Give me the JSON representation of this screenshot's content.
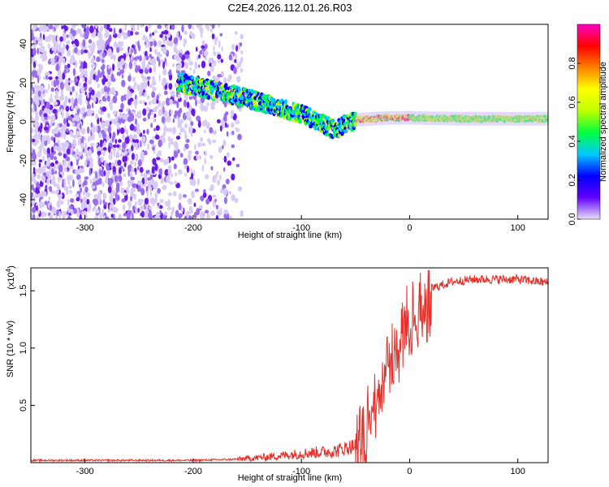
{
  "title": "C2E4.2026.112.01.26.R03",
  "chart_data": [
    {
      "type": "heatmap",
      "name": "spectrogram",
      "xlabel": "Height of straight line (km)",
      "ylabel": "Frequency (Hz)",
      "xlim": [
        -350,
        128
      ],
      "ylim": [
        -50,
        50
      ],
      "xticks": [
        -300,
        -200,
        -100,
        0,
        100
      ],
      "yticks": [
        -40,
        -20,
        0,
        20,
        40
      ],
      "xtick_labels": [
        "-300",
        "-200",
        "-100",
        "0",
        "100"
      ],
      "ytick_labels": [
        "-40",
        "-20",
        "0",
        "20",
        "40"
      ],
      "signal_track": {
        "x": [
          -212,
          -150,
          -100,
          -70,
          -50,
          -20,
          0,
          50,
          128
        ],
        "freq": [
          20,
          12,
          4,
          -4,
          1,
          2,
          2,
          1.5,
          1.5
        ]
      },
      "colorbar": {
        "label": "Normalized spectral amplitude",
        "range": [
          0,
          1
        ],
        "ticks": [
          0.0,
          0.2,
          0.4,
          0.6,
          0.8
        ],
        "tick_labels": [
          "0.0",
          "0.2",
          "0.4",
          "0.6",
          "0.8"
        ],
        "colors": [
          "#e8e0f8",
          "#6000ff",
          "#0000ff",
          "#00c8ff",
          "#00ff40",
          "#c0ff00",
          "#ffff00",
          "#ff8000",
          "#ff0000",
          "#ff00c0"
        ]
      }
    },
    {
      "type": "line",
      "name": "snr",
      "xlabel": "Height of straight line (km)",
      "ylabel": "SNR (10 * v/v)",
      "yscale_label": "(x10",
      "yscale_exp": "4",
      "xlim": [
        -350,
        128
      ],
      "ylim": [
        0,
        1.7
      ],
      "xticks": [
        -300,
        -200,
        -100,
        0,
        100
      ],
      "yticks": [
        0.5,
        1.0,
        1.5
      ],
      "xtick_labels": [
        "-300",
        "-200",
        "-100",
        "0",
        "100"
      ],
      "ytick_labels": [
        "0.5",
        "1.0",
        "1.5"
      ],
      "color": "#e8302a",
      "envelope": {
        "x": [
          -350,
          -250,
          -200,
          -160,
          -130,
          -100,
          -70,
          -50,
          -40,
          -30,
          -20,
          -10,
          0,
          20,
          40,
          60,
          100,
          128
        ],
        "y": [
          0.02,
          0.02,
          0.02,
          0.03,
          0.05,
          0.08,
          0.1,
          0.15,
          0.35,
          0.7,
          0.95,
          1.1,
          1.35,
          1.52,
          1.58,
          1.6,
          1.6,
          1.57
        ]
      }
    }
  ]
}
